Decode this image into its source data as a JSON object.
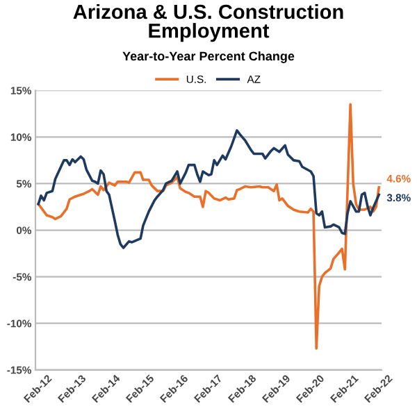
{
  "chart_data": {
    "type": "line",
    "title": "Arizona & U.S. Construction\nEmployment",
    "subtitle": "Year-to-Year Percent Change",
    "series": [
      {
        "name": "U.S.",
        "color": "#e8702a",
        "x": [
          "2012-02",
          "2012-04",
          "2012-05",
          "2012-07",
          "2012-08",
          "2012-10",
          "2012-12",
          "2013-01",
          "2013-03",
          "2013-05",
          "2013-06",
          "2013-08",
          "2013-09",
          "2013-11",
          "2013-12",
          "2014-01",
          "2014-03",
          "2014-05",
          "2014-06",
          "2014-09",
          "2014-10",
          "2014-12",
          "2015-02",
          "2015-03",
          "2015-05",
          "2015-06",
          "2015-08",
          "2015-10",
          "2015-11",
          "2016-01",
          "2016-03",
          "2016-04",
          "2016-06",
          "2016-07",
          "2016-09",
          "2016-11",
          "2016-12",
          "2017-01",
          "2017-02",
          "2017-04",
          "2017-06",
          "2017-08",
          "2017-09",
          "2017-11",
          "2017-12",
          "2018-01",
          "2018-03",
          "2018-05",
          "2018-08",
          "2018-09",
          "2018-11",
          "2019-01",
          "2019-02",
          "2019-03",
          "2019-04",
          "2019-06",
          "2019-08",
          "2019-10",
          "2020-01",
          "2020-02",
          "2020-03",
          "2020-04",
          "2020-05",
          "2020-06",
          "2020-07",
          "2020-09",
          "2020-10",
          "2020-12",
          "2021-01",
          "2021-02",
          "2021-04",
          "2021-05",
          "2021-06",
          "2021-07",
          "2021-09",
          "2021-11",
          "2021-12",
          "2022-01",
          "2022-02"
        ],
        "values": [
          2.8,
          2.0,
          1.6,
          1.4,
          1.2,
          1.5,
          2.3,
          3.3,
          3.6,
          3.8,
          3.9,
          4.2,
          4.4,
          3.8,
          4.7,
          4.3,
          5.1,
          4.8,
          5.2,
          5.2,
          5.1,
          6.2,
          6.2,
          5.4,
          5.4,
          4.8,
          4.2,
          4.2,
          4.8,
          5.1,
          5.7,
          4.5,
          4.1,
          4.0,
          3.6,
          3.6,
          2.5,
          4.2,
          4.0,
          3.4,
          3.2,
          3.5,
          3.3,
          3.4,
          4.3,
          4.4,
          4.7,
          4.6,
          4.7,
          4.6,
          4.6,
          4.2,
          4.9,
          3.2,
          3.4,
          2.6,
          2.2,
          2.0,
          1.9,
          2.3,
          2.0,
          -12.7,
          -6.0,
          -5.0,
          -4.6,
          -4.1,
          -3.1,
          -2.4,
          -2.0,
          -4.2,
          13.5,
          5.0,
          2.8,
          2.2,
          2.2,
          2.5,
          2.0,
          2.5,
          4.6
        ]
      },
      {
        "name": "AZ",
        "color": "#1f3a5f",
        "x": [
          "2012-02",
          "2012-03",
          "2012-04",
          "2012-05",
          "2012-07",
          "2012-08",
          "2012-11",
          "2012-12",
          "2013-01",
          "2013-02",
          "2013-03",
          "2013-05",
          "2013-06",
          "2013-07",
          "2013-09",
          "2013-10",
          "2013-11",
          "2013-12",
          "2014-01",
          "2014-02",
          "2014-03",
          "2014-05",
          "2014-06",
          "2014-07",
          "2014-08",
          "2014-10",
          "2014-11",
          "2015-02",
          "2015-03",
          "2015-05",
          "2015-07",
          "2015-08",
          "2015-10",
          "2015-11",
          "2016-01",
          "2016-03",
          "2016-04",
          "2016-06",
          "2016-07",
          "2016-09",
          "2016-10",
          "2016-11",
          "2016-12",
          "2017-02",
          "2017-03",
          "2017-04",
          "2017-05",
          "2017-07",
          "2017-08",
          "2017-10",
          "2017-12",
          "2018-01",
          "2018-03",
          "2018-05",
          "2018-06",
          "2018-09",
          "2018-10",
          "2018-12",
          "2019-01",
          "2019-03",
          "2019-05",
          "2019-06",
          "2019-08",
          "2019-10",
          "2019-11",
          "2020-02",
          "2020-03",
          "2020-04",
          "2020-05",
          "2020-06",
          "2020-07",
          "2020-09",
          "2020-10",
          "2020-12",
          "2021-01",
          "2021-02",
          "2021-03",
          "2021-04",
          "2021-06",
          "2021-07",
          "2021-08",
          "2021-09",
          "2021-10",
          "2021-11",
          "2021-12",
          "2022-02"
        ],
        "values": [
          2.8,
          3.7,
          3.2,
          4.0,
          4.2,
          5.5,
          7.5,
          7.5,
          7.0,
          7.6,
          7.3,
          7.9,
          7.6,
          6.5,
          5.3,
          5.2,
          5.0,
          6.4,
          6.0,
          4.2,
          3.8,
          1.0,
          -0.5,
          -1.5,
          -1.9,
          -1.2,
          -1.3,
          -0.9,
          0.5,
          2.0,
          3.2,
          3.6,
          4.3,
          5.0,
          5.3,
          6.3,
          5.0,
          6.2,
          7.0,
          7.0,
          6.0,
          5.2,
          6.3,
          5.9,
          6.0,
          7.5,
          7.0,
          8.0,
          7.6,
          9.0,
          10.7,
          10.3,
          9.6,
          8.6,
          8.2,
          8.2,
          7.7,
          8.5,
          8.8,
          8.4,
          9.1,
          8.1,
          7.5,
          7.4,
          6.8,
          6.3,
          5.8,
          1.8,
          1.6,
          2.0,
          0.3,
          0.4,
          0.6,
          0.3,
          -0.3,
          -0.4,
          1.8,
          3.1,
          2.0,
          2.0,
          3.8,
          4.0,
          2.6,
          1.6,
          2.4,
          3.8
        ]
      }
    ],
    "annotations": [
      {
        "text": "4.6%",
        "x": "2022-02",
        "y": 4.6
      },
      {
        "text": "3.8%",
        "x": "2022-02",
        "y": 3.8
      }
    ],
    "xlim": [
      "2012-01",
      "2022-03"
    ],
    "xticks": [
      {
        "value": "2012-02",
        "label": "Feb-12"
      },
      {
        "value": "2013-02",
        "label": "Feb-13"
      },
      {
        "value": "2014-02",
        "label": "Feb-14"
      },
      {
        "value": "2015-02",
        "label": "Feb-15"
      },
      {
        "value": "2016-02",
        "label": "Feb-16"
      },
      {
        "value": "2017-02",
        "label": "Feb-17"
      },
      {
        "value": "2018-02",
        "label": "Feb-18"
      },
      {
        "value": "2019-02",
        "label": "Feb-19"
      },
      {
        "value": "2020-02",
        "label": "Feb-20"
      },
      {
        "value": "2021-02",
        "label": "Feb-21"
      },
      {
        "value": "2022-02",
        "label": "Feb-22"
      }
    ],
    "ylim": [
      -15,
      15
    ],
    "yticks": [
      {
        "value": -15,
        "label": "-15%"
      },
      {
        "value": -10,
        "label": "-10%"
      },
      {
        "value": -5,
        "label": "-5%"
      },
      {
        "value": 0,
        "label": "0%"
      },
      {
        "value": 5,
        "label": "5%"
      },
      {
        "value": 10,
        "label": "10%"
      },
      {
        "value": 15,
        "label": "15%"
      }
    ],
    "grid": "y",
    "legend": "top",
    "marker": "none",
    "line_style": "solid"
  }
}
